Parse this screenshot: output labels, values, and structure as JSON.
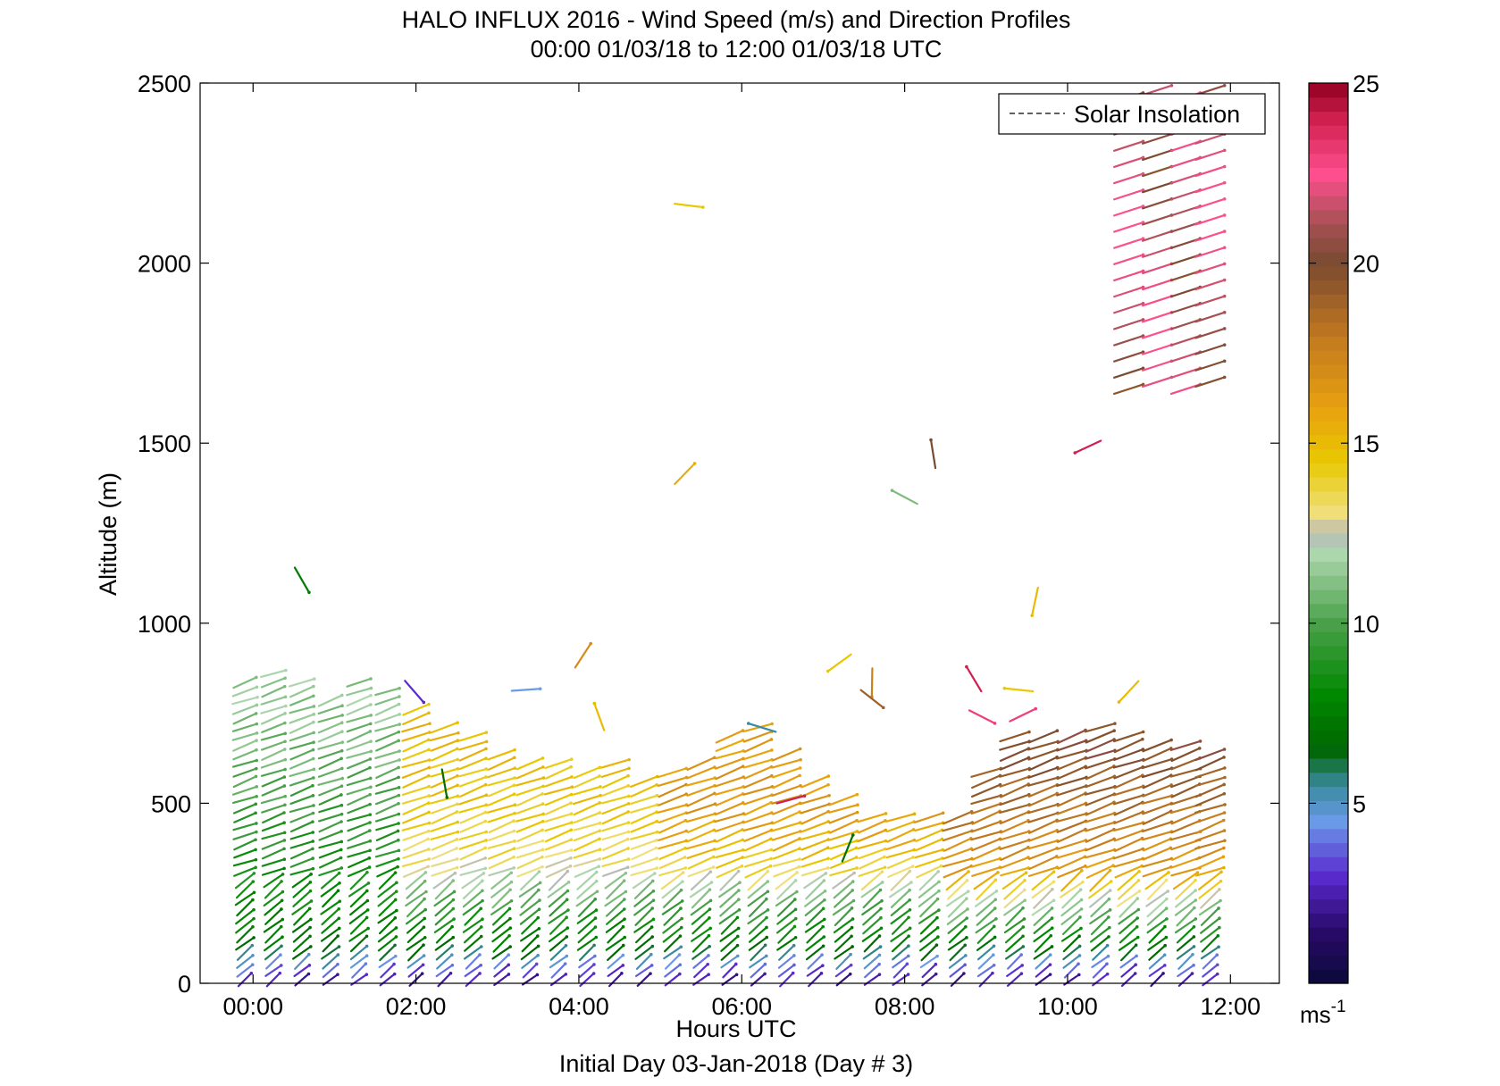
{
  "chart_data": {
    "type": "quiver",
    "title": "HALO INFLUX 2016 - Wind Speed (m/s) and Direction Profiles",
    "subtitle": "00:00 01/03/18 to 12:00 01/03/18  UTC",
    "xlabel": "Hours UTC",
    "ylabel": "Altitude (m)",
    "footer": "Initial Day 03-Jan-2018 (Day # 3)",
    "xlim": [
      -0.65,
      12.6
    ],
    "ylim": [
      0,
      2500
    ],
    "x_ticks": [
      0,
      2,
      4,
      6,
      8,
      10,
      12
    ],
    "x_tick_labels": [
      "00:00",
      "02:00",
      "04:00",
      "06:00",
      "08:00",
      "10:00",
      "12:00"
    ],
    "y_ticks": [
      0,
      500,
      1000,
      1500,
      2000,
      2500
    ],
    "y_tick_labels": [
      "0",
      "500",
      "1000",
      "1500",
      "2000",
      "2500"
    ],
    "legend": {
      "label": "Solar Insolation",
      "placement": "top-right",
      "line_style": "dashed"
    },
    "colorbar": {
      "range": [
        0,
        25
      ],
      "ticks": [
        5,
        10,
        15,
        20,
        25
      ],
      "tick_labels": [
        "5",
        "10",
        "15",
        "20",
        "25"
      ],
      "unit_label": "ms",
      "unit_exponent": "-1",
      "colormap": [
        [
          0,
          "#0a0a3a"
        ],
        [
          1.5,
          "#2a0a6a"
        ],
        [
          3,
          "#5a2ad0"
        ],
        [
          4.5,
          "#6a9ae8"
        ],
        [
          5.5,
          "#3a8aa0"
        ],
        [
          6.5,
          "#006600"
        ],
        [
          8,
          "#008800"
        ],
        [
          10,
          "#4aa04a"
        ],
        [
          12,
          "#b0d8b0"
        ],
        [
          12.5,
          "#b8b8b8"
        ],
        [
          13,
          "#f0e080"
        ],
        [
          14.5,
          "#e8c800"
        ],
        [
          16,
          "#e8a010"
        ],
        [
          18,
          "#c07820"
        ],
        [
          20,
          "#7a4a30"
        ],
        [
          21,
          "#a05050"
        ],
        [
          22.5,
          "#ff4f8f"
        ],
        [
          24,
          "#d02050"
        ],
        [
          25,
          "#900020"
        ]
      ]
    },
    "profiles": {
      "times_hours": [
        -0.1,
        0.25,
        0.6,
        0.95,
        1.3,
        1.65,
        2.0,
        2.35,
        2.7,
        3.05,
        3.4,
        3.75,
        4.1,
        4.45,
        4.8,
        5.15,
        5.5,
        5.85,
        6.2,
        6.55,
        6.9,
        7.25,
        7.6,
        7.95,
        8.3,
        8.65,
        9.0,
        9.35,
        9.7,
        10.05,
        10.4,
        10.75,
        11.1,
        11.45,
        11.75
      ],
      "altitude_step_m": 25,
      "barb_angles_deg": {
        "layer_0_300m": 40,
        "layer_300_900m": 20,
        "upper_2000_2500m": 18
      },
      "top_altitude_m": [
        840,
        870,
        850,
        800,
        840,
        830,
        760,
        720,
        700,
        650,
        620,
        610,
        600,
        610,
        580,
        590,
        620,
        700,
        720,
        640,
        570,
        520,
        480,
        460,
        460,
        470,
        600,
        700,
        700,
        700,
        720,
        700,
        680,
        660,
        640
      ],
      "speed_by_altitude_segments": {
        "before_02:00": {
          "0": 2,
          "25": 3,
          "50": 4.5,
          "75": 5.5,
          "100": 7,
          "200": 8,
          "400": 9,
          "600": 10.5,
          "800": 11.5
        },
        "02:00_to_05:00": {
          "0": 2,
          "25": 3,
          "50": 4,
          "100": 7,
          "175": 8.5,
          "250": 11,
          "350": 13.5,
          "500": 14.5,
          "700": 15
        },
        "05:00_to_08:30": {
          "0": 2,
          "25": 3,
          "50": 4,
          "100": 7,
          "175": 9,
          "250": 11,
          "300": 13.5,
          "400": 15.5,
          "500": 16.5,
          "700": 16
        },
        "after_08:30": {
          "0": 2,
          "25": 3,
          "50": 4,
          "100": 7,
          "150": 9,
          "200": 11,
          "250": 13,
          "300": 16,
          "450": 18,
          "550": 19,
          "650": 20
        }
      }
    },
    "upper_column": {
      "times_hours": [
        10.75,
        11.1,
        11.45,
        11.75
      ],
      "altitude_range_m": [
        1650,
        2500
      ],
      "speed_range": [
        19.5,
        22.5
      ]
    },
    "isolated_vectors": [
      {
        "t": 0.6,
        "alt": 1120,
        "speed": 7.5
      },
      {
        "t": 5.35,
        "alt": 2160,
        "speed": 14.5
      },
      {
        "t": 5.3,
        "alt": 1415,
        "speed": 15.5
      },
      {
        "t": 8.35,
        "alt": 1470,
        "speed": 20
      },
      {
        "t": 8.0,
        "alt": 1350,
        "speed": 11
      },
      {
        "t": 10.25,
        "alt": 1490,
        "speed": 24
      },
      {
        "t": 9.6,
        "alt": 1060,
        "speed": 15
      },
      {
        "t": 1.98,
        "alt": 810,
        "speed": 3
      },
      {
        "t": 3.35,
        "alt": 815,
        "speed": 4.5
      },
      {
        "t": 4.05,
        "alt": 910,
        "speed": 17
      },
      {
        "t": 4.25,
        "alt": 740,
        "speed": 15
      },
      {
        "t": 6.25,
        "alt": 710,
        "speed": 5.5
      },
      {
        "t": 7.2,
        "alt": 890,
        "speed": 14.5
      },
      {
        "t": 7.6,
        "alt": 835,
        "speed": 17.5
      },
      {
        "t": 7.6,
        "alt": 790,
        "speed": 19
      },
      {
        "t": 6.6,
        "alt": 510,
        "speed": 24
      },
      {
        "t": 7.3,
        "alt": 375,
        "speed": 7
      },
      {
        "t": 8.85,
        "alt": 845,
        "speed": 24
      },
      {
        "t": 9.4,
        "alt": 815,
        "speed": 14.5
      },
      {
        "t": 10.75,
        "alt": 810,
        "speed": 15
      },
      {
        "t": 2.35,
        "alt": 555,
        "speed": 7
      },
      {
        "t": 8.95,
        "alt": 740,
        "speed": 23
      },
      {
        "t": 9.45,
        "alt": 745,
        "speed": 23
      }
    ]
  }
}
